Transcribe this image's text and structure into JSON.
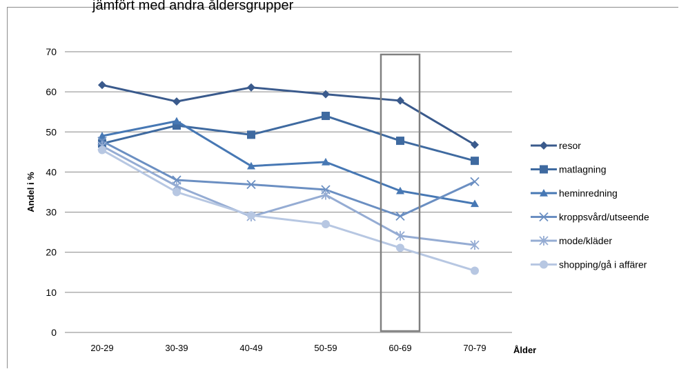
{
  "chart_data": {
    "type": "line",
    "title": "jämfört med andra åldersgrupper",
    "xlabel": "Ålder",
    "ylabel": "Andel i %",
    "categories": [
      "20-29",
      "30-39",
      "40-49",
      "50-59",
      "60-69",
      "70-79"
    ],
    "ylim": [
      0,
      70
    ],
    "yticks": [
      0,
      10,
      20,
      30,
      40,
      50,
      60,
      70
    ],
    "grid": true,
    "legend": "right",
    "highlight_category": "60-69",
    "series": [
      {
        "name": "resor",
        "values": [
          61.7,
          57.6,
          61.1,
          59.4,
          57.8,
          46.8
        ],
        "color": "#3a5a8c",
        "marker": "diamond"
      },
      {
        "name": "matlagning",
        "values": [
          47.1,
          51.6,
          49.3,
          54.0,
          47.8,
          42.8
        ],
        "color": "#3f6aa0",
        "marker": "square"
      },
      {
        "name": "heminredning",
        "values": [
          49.0,
          52.7,
          41.5,
          42.5,
          35.3,
          32.1
        ],
        "color": "#4778b4",
        "marker": "triangle"
      },
      {
        "name": "kroppsvård/utseende",
        "values": [
          47.7,
          38.0,
          36.9,
          35.6,
          29.0,
          37.6
        ],
        "color": "#6b8fc2",
        "marker": "x"
      },
      {
        "name": "mode/kläder",
        "values": [
          46.5,
          36.5,
          28.9,
          34.3,
          24.1,
          21.8
        ],
        "color": "#95acd3",
        "marker": "star"
      },
      {
        "name": "shopping/gå i affärer",
        "values": [
          45.5,
          35.0,
          29.2,
          27.0,
          21.1,
          15.4
        ],
        "color": "#b7c7e2",
        "marker": "circle"
      }
    ]
  }
}
